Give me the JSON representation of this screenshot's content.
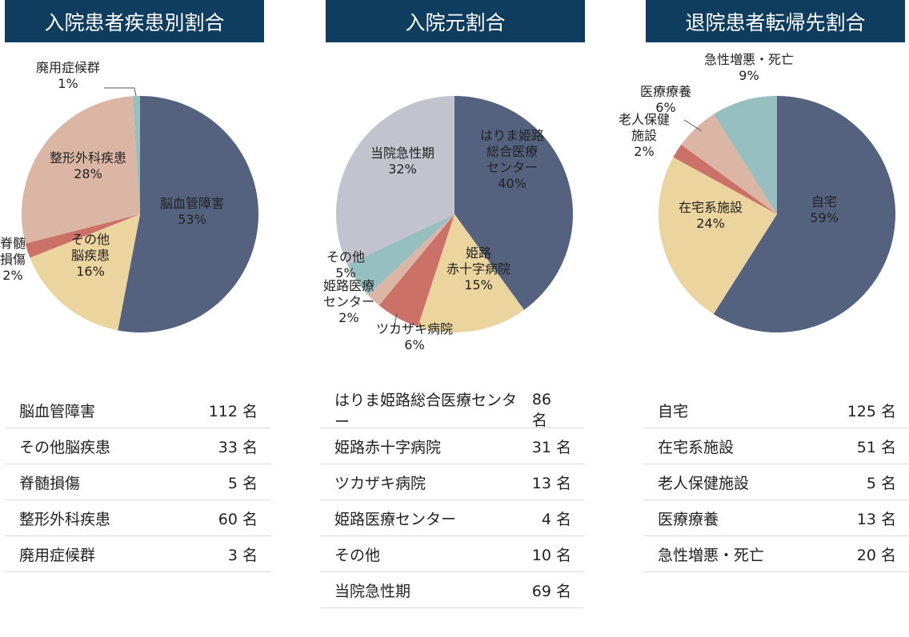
{
  "chart_data": [
    {
      "type": "pie",
      "title": "入院患者疾患別割合",
      "slices": [
        {
          "name": "脳血管障害",
          "value": 53,
          "count": 112,
          "color": "#546280",
          "label_lines": [
            "脳血管障害",
            "53%"
          ],
          "label_color": "#ffffff"
        },
        {
          "name": "その他脳疾患",
          "value": 16,
          "count": 33,
          "color": "#ecd49e",
          "label_lines": [
            "その他",
            "脳疾患",
            "16%"
          ],
          "label_color": "#222222"
        },
        {
          "name": "脊髄損傷",
          "value": 2,
          "count": 5,
          "color": "#cc7168",
          "label_lines": [
            "脊髄",
            "損傷",
            "2%"
          ],
          "label_color": "#222222"
        },
        {
          "name": "整形外科疾患",
          "value": 28,
          "count": 60,
          "color": "#dcb6a4",
          "label_lines": [
            "整形外科疾患",
            "28%"
          ],
          "label_color": "#222222"
        },
        {
          "name": "廃用症候群",
          "value": 1,
          "count": 3,
          "color": "#97bfc0",
          "label_lines": [
            "廃用症候群",
            "1%"
          ],
          "label_color": "#222222"
        }
      ],
      "table": [
        {
          "label": "脳血管障害",
          "count": "112 名"
        },
        {
          "label": "その他脳疾患",
          "count": "33 名"
        },
        {
          "label": "脊髄損傷",
          "count": "5 名"
        },
        {
          "label": "整形外科疾患",
          "count": "60 名"
        },
        {
          "label": "廃用症候群",
          "count": "3 名"
        }
      ]
    },
    {
      "type": "pie",
      "title": "入院元割合",
      "slices": [
        {
          "name": "はりま姫路総合医療センター",
          "value": 40,
          "count": 86,
          "color": "#546280",
          "label_lines": [
            "はりま姫路",
            "総合医療",
            "センター",
            "40%"
          ],
          "label_color": "#ffffff"
        },
        {
          "name": "姫路赤十字病院",
          "value": 15,
          "count": 31,
          "color": "#ecd49e",
          "label_lines": [
            "姫路",
            "赤十字病院",
            "15%"
          ],
          "label_color": "#222222"
        },
        {
          "name": "ツカザキ病院",
          "value": 6,
          "count": 13,
          "color": "#cc7168",
          "label_lines": [
            "ツカザキ病院",
            "6%"
          ],
          "label_color": "#222222"
        },
        {
          "name": "姫路医療センター",
          "value": 2,
          "count": 4,
          "color": "#dcb6a4",
          "label_lines": [
            "姫路医療",
            "センター",
            "2%"
          ],
          "label_color": "#222222"
        },
        {
          "name": "その他",
          "value": 5,
          "count": 10,
          "color": "#97bfc0",
          "label_lines": [
            "その他",
            "5%"
          ],
          "label_color": "#222222"
        },
        {
          "name": "当院急性期",
          "value": 32,
          "count": 69,
          "color": "#c3c3d0",
          "label_lines": [
            "当院急性期",
            "32%"
          ],
          "label_color": "#222222"
        }
      ],
      "table": [
        {
          "label": "はりま姫路総合医療センター",
          "count": "86 名"
        },
        {
          "label": "姫路赤十字病院",
          "count": "31 名"
        },
        {
          "label": "ツカザキ病院",
          "count": "13 名"
        },
        {
          "label": "姫路医療センター",
          "count": "4 名"
        },
        {
          "label": "その他",
          "count": "10 名"
        },
        {
          "label": "当院急性期",
          "count": "69 名"
        }
      ]
    },
    {
      "type": "pie",
      "title": "退院患者転帰先割合",
      "slices": [
        {
          "name": "自宅",
          "value": 59,
          "count": 125,
          "color": "#546280",
          "label_lines": [
            "自宅",
            "59%"
          ],
          "label_color": "#ffffff"
        },
        {
          "name": "在宅系施設",
          "value": 24,
          "count": 51,
          "color": "#ecd49e",
          "label_lines": [
            "在宅系施設",
            "24%"
          ],
          "label_color": "#222222"
        },
        {
          "name": "老人保健施設",
          "value": 2,
          "count": 5,
          "color": "#cc7168",
          "label_lines": [
            "老人保健",
            "施設",
            "2%"
          ],
          "label_color": "#222222"
        },
        {
          "name": "医療療養",
          "value": 6,
          "count": 13,
          "color": "#dcb6a4",
          "label_lines": [
            "医療療養",
            "6%"
          ],
          "label_color": "#222222"
        },
        {
          "name": "急性増悪・死亡",
          "value": 9,
          "count": 20,
          "color": "#97bfc0",
          "label_lines": [
            "急性増悪・死亡",
            "9%"
          ],
          "label_color": "#222222"
        }
      ],
      "table": [
        {
          "label": "自宅",
          "count": "125 名"
        },
        {
          "label": "在宅系施設",
          "count": "51 名"
        },
        {
          "label": "老人保健施設",
          "count": "5 名"
        },
        {
          "label": "医療療養",
          "count": "13 名"
        },
        {
          "label": "急性増悪・死亡",
          "count": "20 名"
        }
      ]
    }
  ]
}
